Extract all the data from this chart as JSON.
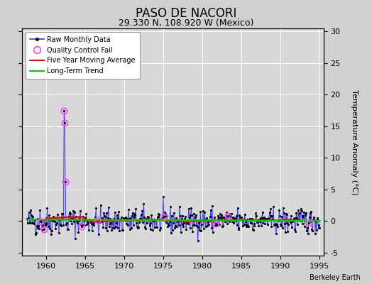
{
  "title": "PASO DE NACORI",
  "subtitle": "29.330 N, 108.920 W (Mexico)",
  "ylabel_right": "Temperature Anomaly (°C)",
  "credit": "Berkeley Earth",
  "xlim": [
    1957.0,
    1995.5
  ],
  "ylim": [
    -5.5,
    30.5
  ],
  "yticks_left": [
    -5,
    0,
    5,
    10,
    15,
    20,
    25,
    30
  ],
  "yticks_right": [
    -5,
    0,
    5,
    10,
    15,
    20,
    25,
    30
  ],
  "xticks": [
    1960,
    1965,
    1970,
    1975,
    1980,
    1985,
    1990,
    1995
  ],
  "seed": 42,
  "raw_line_color": "#3333ff",
  "raw_marker_color": "#000000",
  "stem_color": "#aaaaff",
  "ma_color": "#ff0000",
  "trend_color": "#00cc00",
  "qc_color": "#ff44ff",
  "bg_color": "#d8d8d8",
  "outer_color": "#d0d0d0",
  "title_fontsize": 12,
  "subtitle_fontsize": 9,
  "tick_fontsize": 8,
  "ylabel_fontsize": 8
}
